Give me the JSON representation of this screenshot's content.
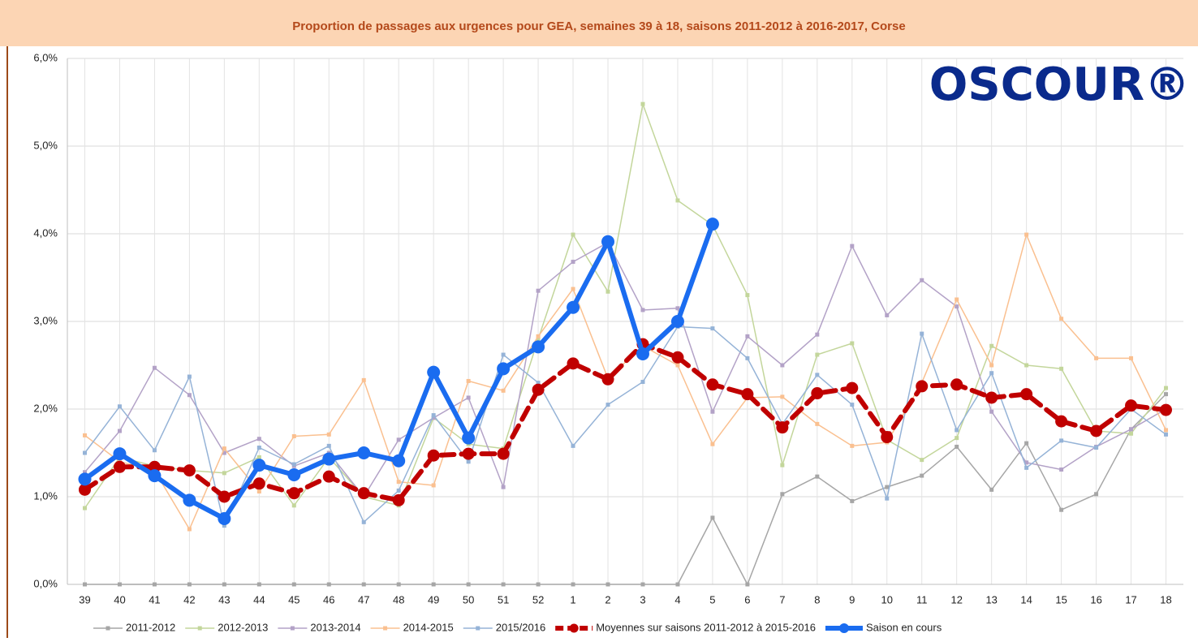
{
  "chart_data": {
    "type": "line",
    "title": "Proportion de passages aux urgences pour GEA, semaines 39 à 18, saisons 2011-2012 à 2016-2017, Corse",
    "annotation": "OSCOUR®",
    "categories": [
      "39",
      "40",
      "41",
      "42",
      "43",
      "44",
      "45",
      "46",
      "47",
      "48",
      "49",
      "50",
      "51",
      "52",
      "1",
      "2",
      "3",
      "4",
      "5",
      "6",
      "7",
      "8",
      "9",
      "10",
      "11",
      "12",
      "13",
      "14",
      "15",
      "16",
      "17",
      "18"
    ],
    "ylim": [
      0,
      6
    ],
    "yticks": [
      {
        "value": 0,
        "label": "0,0%"
      },
      {
        "value": 1,
        "label": "1,0%"
      },
      {
        "value": 2,
        "label": "2,0%"
      },
      {
        "value": 3,
        "label": "3,0%"
      },
      {
        "value": 4,
        "label": "4,0%"
      },
      {
        "value": 5,
        "label": "5,0%"
      },
      {
        "value": 6,
        "label": "6,0%"
      }
    ],
    "grid": true,
    "legend": "bottom",
    "series": [
      {
        "name": "2011-2012",
        "color": "#a6a6a6",
        "values": [
          0,
          0,
          0,
          0,
          0,
          0,
          0,
          0,
          0,
          0,
          0,
          0,
          0,
          0,
          0,
          0,
          0,
          0,
          0.76,
          0,
          1.03,
          1.23,
          0.95,
          1.11,
          1.24,
          1.57,
          1.08,
          1.61,
          0.85,
          1.03,
          1.77,
          2.17
        ]
      },
      {
        "name": "2012-2013",
        "color": "#c3d69b",
        "values": [
          0.87,
          1.45,
          1.35,
          1.3,
          1.27,
          1.45,
          0.9,
          1.45,
          1.0,
          0.9,
          1.9,
          1.6,
          1.55,
          2.8,
          3.99,
          3.34,
          5.48,
          4.38,
          4.1,
          3.3,
          1.36,
          2.62,
          2.75,
          1.65,
          1.42,
          1.67,
          2.72,
          2.5,
          2.46,
          1.75,
          1.72,
          2.24
        ]
      },
      {
        "name": "2013-2014",
        "color": "#b3a2c7",
        "values": [
          1.28,
          1.75,
          2.47,
          2.16,
          1.5,
          1.66,
          1.35,
          1.5,
          1.0,
          1.65,
          1.9,
          2.13,
          1.11,
          3.35,
          3.68,
          3.9,
          3.13,
          3.15,
          1.97,
          2.83,
          2.5,
          2.85,
          3.86,
          3.07,
          3.47,
          3.17,
          1.97,
          1.39,
          1.31,
          1.57,
          1.77,
          2.0
        ]
      },
      {
        "name": "2014-2015",
        "color": "#fac090",
        "values": [
          1.7,
          1.4,
          1.3,
          0.63,
          1.55,
          1.06,
          1.69,
          1.71,
          2.33,
          1.17,
          1.13,
          2.32,
          2.21,
          2.83,
          3.37,
          2.35,
          2.72,
          2.5,
          1.6,
          2.13,
          2.14,
          1.83,
          1.58,
          1.62,
          2.3,
          3.25,
          2.5,
          3.99,
          3.03,
          2.58,
          2.58,
          1.76
        ]
      },
      {
        "name": "2015/2016",
        "color": "#95b3d7",
        "values": [
          1.5,
          2.03,
          1.53,
          2.37,
          0.67,
          1.56,
          1.37,
          1.58,
          0.71,
          1.07,
          1.93,
          1.4,
          2.62,
          2.3,
          1.58,
          2.05,
          2.31,
          2.94,
          2.92,
          2.58,
          1.83,
          2.39,
          2.05,
          0.98,
          2.86,
          1.76,
          2.41,
          1.33,
          1.64,
          1.56,
          2.0,
          1.71
        ]
      },
      {
        "name": "Moyennes sur saisons 2011-2012 à 2015-2016",
        "color": "#c00000",
        "values": [
          1.08,
          1.34,
          1.34,
          1.3,
          1.0,
          1.15,
          1.04,
          1.23,
          1.04,
          0.96,
          1.47,
          1.49,
          1.49,
          2.22,
          2.52,
          2.34,
          2.74,
          2.59,
          2.28,
          2.17,
          1.79,
          2.18,
          2.24,
          1.68,
          2.26,
          2.28,
          2.13,
          2.17,
          1.86,
          1.75,
          2.04,
          1.99
        ]
      },
      {
        "name": "Saison en cours",
        "color": "#1a6cf0",
        "values": [
          1.2,
          1.49,
          1.24,
          0.96,
          0.75,
          1.36,
          1.25,
          1.43,
          1.5,
          1.41,
          2.42,
          1.67,
          2.46,
          2.71,
          3.16,
          3.91,
          2.63,
          3.0,
          4.11,
          null,
          null,
          null,
          null,
          null,
          null,
          null,
          null,
          null,
          null,
          null,
          null,
          null
        ]
      }
    ]
  }
}
